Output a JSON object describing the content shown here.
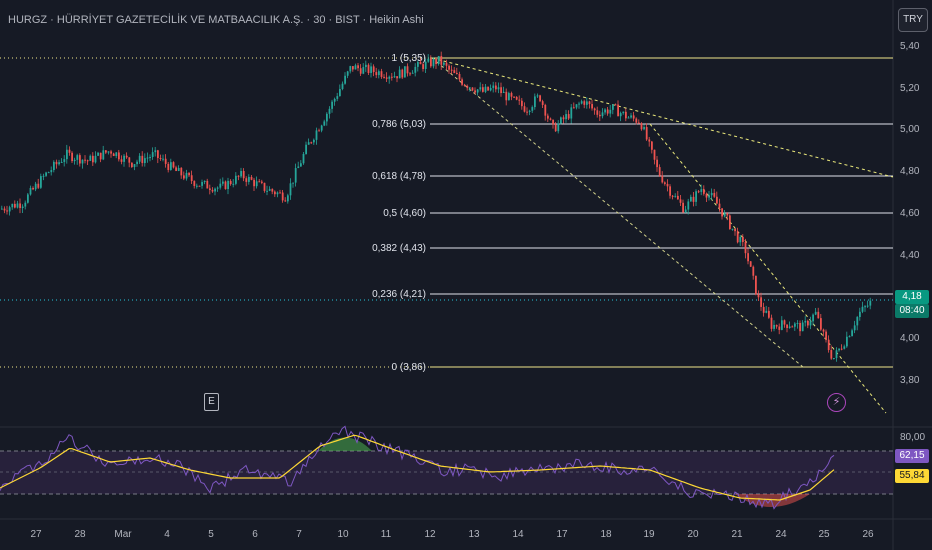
{
  "header": {
    "title": "HURGZ · HÜRRİYET GAZETECİLİK VE MATBAACILIK A.Ş. · 30 · BIST · Heikin Ashi",
    "currency": "TRY"
  },
  "price_axis": {
    "labels": [
      "5,40",
      "5,20",
      "5,00",
      "4,80",
      "4,60",
      "4,40",
      "4,00",
      "3,80"
    ]
  },
  "current_price": {
    "price": "4,18",
    "countdown": "08:40"
  },
  "fibonacci": {
    "levels": [
      {
        "label": "1 (5,35)",
        "price": 5.35
      },
      {
        "label": "0,786 (5,03)",
        "price": 5.03
      },
      {
        "label": "0,618 (4,78)",
        "price": 4.78
      },
      {
        "label": "0,5 (4,60)",
        "price": 4.6
      },
      {
        "label": "0,382 (4,43)",
        "price": 4.43
      },
      {
        "label": "0,236 (4,21)",
        "price": 4.21
      },
      {
        "label": "0 (3,86)",
        "price": 3.86
      }
    ]
  },
  "markers": {
    "earnings": "E",
    "split": "⚡"
  },
  "rsi": {
    "level_label": "80,00",
    "rsi_value": "62,15",
    "ma_value": "55,84",
    "colors": {
      "rsi": "#7e57c2",
      "ma": "#fdd835",
      "band": "#2a2340"
    }
  },
  "time_axis": {
    "labels": [
      "27",
      "28",
      "Mar",
      "4",
      "5",
      "6",
      "7",
      "10",
      "11",
      "12",
      "13",
      "14",
      "17",
      "18",
      "19",
      "20",
      "21",
      "24",
      "25",
      "26"
    ]
  },
  "colors": {
    "up": "#26a69a",
    "down": "#ef5350",
    "fib_line": "#e0e3eb",
    "fib_extreme": "#f0e68c",
    "current": "#089981"
  },
  "chart_data": {
    "type": "candlestick",
    "title": "HURGZ · HÜRRİYET GAZETECİLİK VE MATBAACILIK A.Ş. · 30 · BIST · Heikin Ashi",
    "y_range": [
      3.7,
      5.5
    ],
    "price_path": [
      [
        0,
        4.62
      ],
      [
        0.5,
        4.65
      ],
      [
        1,
        4.78
      ],
      [
        1.5,
        4.88
      ],
      [
        2,
        4.85
      ],
      [
        2.5,
        4.9
      ],
      [
        3,
        4.84
      ],
      [
        3.5,
        4.88
      ],
      [
        4,
        4.8
      ],
      [
        4.5,
        4.74
      ],
      [
        5,
        4.72
      ],
      [
        5.5,
        4.78
      ],
      [
        6,
        4.72
      ],
      [
        6.5,
        4.68
      ],
      [
        7,
        4.92
      ],
      [
        7.5,
        5.1
      ],
      [
        8,
        5.3
      ],
      [
        8.5,
        5.28
      ],
      [
        9,
        5.26
      ],
      [
        9.5,
        5.3
      ],
      [
        10,
        5.33
      ],
      [
        10.3,
        5.27
      ],
      [
        10.6,
        5.22
      ],
      [
        11,
        5.18
      ],
      [
        11.3,
        5.2
      ],
      [
        11.6,
        5.15
      ],
      [
        12,
        5.1
      ],
      [
        12.3,
        5.16
      ],
      [
        12.6,
        5.0
      ],
      [
        13,
        5.08
      ],
      [
        13.3,
        5.14
      ],
      [
        13.6,
        5.08
      ],
      [
        14,
        5.1
      ],
      [
        14.3,
        5.06
      ],
      [
        14.6,
        5.04
      ],
      [
        15,
        4.8
      ],
      [
        15.3,
        4.7
      ],
      [
        15.6,
        4.62
      ],
      [
        16,
        4.72
      ],
      [
        16.3,
        4.66
      ],
      [
        16.6,
        4.56
      ],
      [
        17,
        4.42
      ],
      [
        17.3,
        4.18
      ],
      [
        17.6,
        4.06
      ],
      [
        18,
        4.07
      ],
      [
        18.3,
        4.05
      ],
      [
        18.6,
        4.12
      ],
      [
        18.8,
        4.0
      ],
      [
        19,
        3.9
      ],
      [
        19.3,
        4.0
      ],
      [
        19.6,
        4.12
      ],
      [
        19.9,
        4.18
      ]
    ],
    "fib_levels": [
      5.35,
      5.03,
      4.78,
      4.6,
      4.43,
      4.21,
      3.86
    ],
    "last_price": 4.18,
    "rsi_last": 62.15,
    "rsi_ma_last": 55.84
  }
}
